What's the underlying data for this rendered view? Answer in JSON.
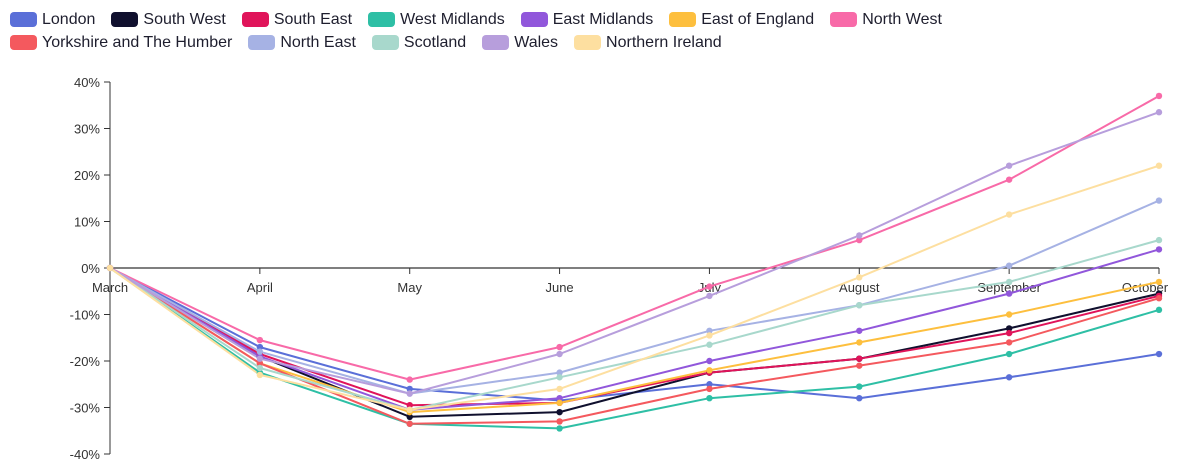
{
  "chart_data": {
    "type": "line",
    "categories": [
      "March",
      "April",
      "May",
      "June",
      "July",
      "August",
      "September",
      "October"
    ],
    "yticks": [
      "40%",
      "30%",
      "20%",
      "10%",
      "0%",
      "-10%",
      "-20%",
      "-30%",
      "-40%"
    ],
    "ylim": [
      -40,
      40
    ],
    "legend_position": "top",
    "grid": false,
    "series": [
      {
        "name": "London",
        "color": "#5a6fd8",
        "values": [
          0,
          -17,
          -26,
          -28.5,
          -25,
          -28,
          -23.5,
          -18.5
        ]
      },
      {
        "name": "South West",
        "color": "#10102e",
        "values": [
          0,
          -19,
          -32,
          -31,
          -22.5,
          -19.5,
          -13,
          -5.5
        ]
      },
      {
        "name": "South East",
        "color": "#e0145a",
        "values": [
          0,
          -18.5,
          -29.5,
          -29,
          -22.5,
          -19.5,
          -14,
          -6
        ]
      },
      {
        "name": "West Midlands",
        "color": "#2ebfa5",
        "values": [
          0,
          -22.5,
          -33.5,
          -34.5,
          -28,
          -25.5,
          -18.5,
          -9
        ]
      },
      {
        "name": "East Midlands",
        "color": "#9157db",
        "values": [
          0,
          -19,
          -30.5,
          -28,
          -20,
          -13.5,
          -5.5,
          4
        ]
      },
      {
        "name": "East of England",
        "color": "#fdbf3e",
        "values": [
          0,
          -20.5,
          -31,
          -29,
          -22,
          -16,
          -10,
          -3
        ]
      },
      {
        "name": "North West",
        "color": "#f86aa8",
        "values": [
          0,
          -15.5,
          -24,
          -17,
          -4,
          6,
          19,
          37
        ]
      },
      {
        "name": "Yorkshire and The Humber",
        "color": "#f4595e",
        "values": [
          0,
          -20.5,
          -33.5,
          -33,
          -26,
          -21,
          -16,
          -6.5
        ]
      },
      {
        "name": "North East",
        "color": "#a6b2e4",
        "values": [
          0,
          -18,
          -27,
          -22.5,
          -13.5,
          -8,
          0.5,
          14.5
        ]
      },
      {
        "name": "Scotland",
        "color": "#a8d8cc",
        "values": [
          0,
          -21.5,
          -30.5,
          -23.5,
          -16.5,
          -8,
          -3,
          6
        ]
      },
      {
        "name": "Wales",
        "color": "#b79edc",
        "values": [
          0,
          -19.5,
          -27,
          -18.5,
          -6,
          7,
          22,
          33.5
        ]
      },
      {
        "name": "Northern Ireland",
        "color": "#fddfa0",
        "values": [
          0,
          -23,
          -30.5,
          -26,
          -14.5,
          -2,
          11.5,
          22
        ]
      }
    ]
  }
}
